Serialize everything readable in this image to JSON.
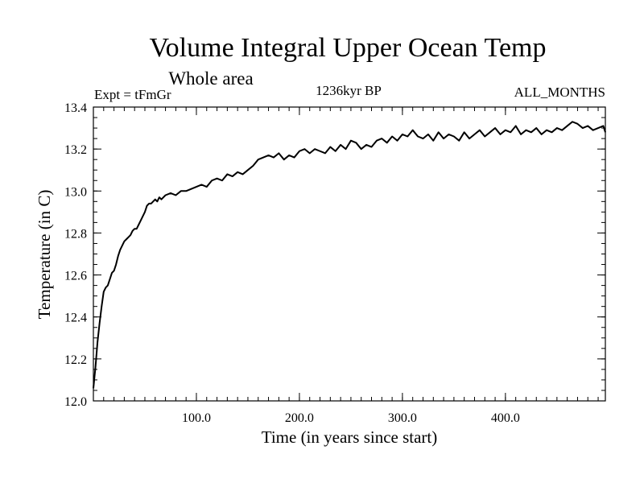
{
  "chart_data": {
    "type": "line",
    "title": "Volume Integral Upper Ocean Temp",
    "subtitle": "Whole area",
    "experiment_label": "Expt = tFmGr",
    "period_label": "1236kyr BP",
    "months_label": "ALL_MONTHS",
    "xlabel": "Time (in years since start)",
    "ylabel": "Temperature (in C)",
    "xlim": [
      0,
      497
    ],
    "ylim": [
      12.0,
      13.4
    ],
    "x_ticks": [
      {
        "value": 100,
        "label": "100.0"
      },
      {
        "value": 200,
        "label": "200.0"
      },
      {
        "value": 300,
        "label": "300.0"
      },
      {
        "value": 400,
        "label": "400.0"
      }
    ],
    "y_ticks": [
      {
        "value": 12.0,
        "label": "12.0"
      },
      {
        "value": 12.2,
        "label": "12.2"
      },
      {
        "value": 12.4,
        "label": "12.4"
      },
      {
        "value": 12.6,
        "label": "12.6"
      },
      {
        "value": 12.8,
        "label": "12.8"
      },
      {
        "value": 13.0,
        "label": "13.0"
      },
      {
        "value": 13.2,
        "label": "13.2"
      },
      {
        "value": 13.4,
        "label": "13.4"
      }
    ],
    "x_minor_step": 10,
    "y_minor_step": 0.05,
    "grid": false,
    "series": [
      {
        "name": "Temperature",
        "color": "#000000",
        "x": [
          0,
          2,
          4,
          6,
          8,
          10,
          12,
          14,
          16,
          18,
          20,
          22,
          24,
          26,
          28,
          30,
          32,
          34,
          36,
          38,
          40,
          42,
          44,
          46,
          48,
          50,
          52,
          54,
          56,
          58,
          60,
          62,
          64,
          66,
          68,
          70,
          75,
          80,
          85,
          90,
          95,
          100,
          105,
          110,
          115,
          120,
          125,
          130,
          135,
          140,
          145,
          150,
          155,
          160,
          165,
          170,
          175,
          180,
          185,
          190,
          195,
          200,
          205,
          210,
          215,
          220,
          225,
          230,
          235,
          240,
          245,
          250,
          255,
          260,
          265,
          270,
          275,
          280,
          285,
          290,
          295,
          300,
          305,
          310,
          315,
          320,
          325,
          330,
          335,
          340,
          345,
          350,
          355,
          360,
          365,
          370,
          375,
          380,
          385,
          390,
          395,
          400,
          405,
          410,
          415,
          420,
          425,
          430,
          435,
          440,
          445,
          450,
          455,
          460,
          465,
          470,
          475,
          480,
          485,
          490,
          495,
          497
        ],
        "values": [
          12.06,
          12.16,
          12.28,
          12.37,
          12.45,
          12.52,
          12.54,
          12.55,
          12.58,
          12.61,
          12.62,
          12.65,
          12.69,
          12.72,
          12.74,
          12.76,
          12.77,
          12.78,
          12.79,
          12.81,
          12.82,
          12.82,
          12.84,
          12.86,
          12.88,
          12.9,
          12.93,
          12.94,
          12.94,
          12.95,
          12.96,
          12.95,
          12.97,
          12.96,
          12.97,
          12.98,
          12.99,
          12.98,
          13.0,
          13.0,
          13.01,
          13.02,
          13.03,
          13.02,
          13.05,
          13.06,
          13.05,
          13.08,
          13.07,
          13.09,
          13.08,
          13.1,
          13.12,
          13.15,
          13.16,
          13.17,
          13.16,
          13.18,
          13.15,
          13.17,
          13.16,
          13.19,
          13.2,
          13.18,
          13.2,
          13.19,
          13.18,
          13.21,
          13.19,
          13.22,
          13.2,
          13.24,
          13.23,
          13.2,
          13.22,
          13.21,
          13.24,
          13.25,
          13.23,
          13.26,
          13.24,
          13.27,
          13.26,
          13.29,
          13.26,
          13.25,
          13.27,
          13.24,
          13.28,
          13.25,
          13.27,
          13.26,
          13.24,
          13.28,
          13.25,
          13.27,
          13.29,
          13.26,
          13.28,
          13.3,
          13.27,
          13.29,
          13.28,
          13.31,
          13.27,
          13.29,
          13.28,
          13.3,
          13.27,
          13.29,
          13.28,
          13.3,
          13.29,
          13.31,
          13.33,
          13.32,
          13.3,
          13.31,
          13.29,
          13.3,
          13.31,
          13.28
        ]
      }
    ]
  }
}
